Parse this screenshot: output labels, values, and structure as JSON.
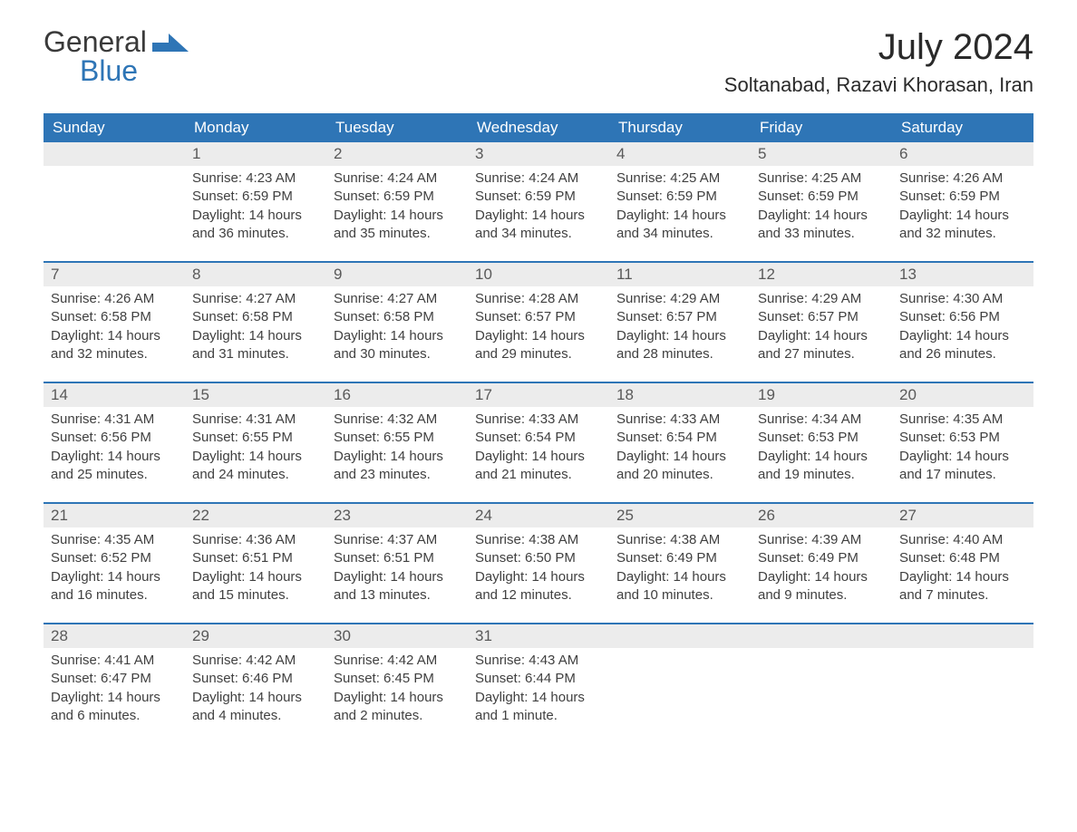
{
  "logo": {
    "word1": "General",
    "word2": "Blue"
  },
  "title": "July 2024",
  "location": "Soltanabad, Razavi Khorasan, Iran",
  "colors": {
    "header_bg": "#2e75b6",
    "header_text": "#ffffff",
    "daynum_bg": "#ececec",
    "daynum_text": "#595959",
    "row_border": "#2e75b6",
    "body_text": "#404040",
    "logo_blue": "#2e75b6"
  },
  "day_headers": [
    "Sunday",
    "Monday",
    "Tuesday",
    "Wednesday",
    "Thursday",
    "Friday",
    "Saturday"
  ],
  "labels": {
    "sunrise": "Sunrise:",
    "sunset": "Sunset:",
    "daylight": "Daylight:"
  },
  "weeks": [
    [
      null,
      {
        "n": "1",
        "sunrise": "4:23 AM",
        "sunset": "6:59 PM",
        "daylight": "14 hours and 36 minutes."
      },
      {
        "n": "2",
        "sunrise": "4:24 AM",
        "sunset": "6:59 PM",
        "daylight": "14 hours and 35 minutes."
      },
      {
        "n": "3",
        "sunrise": "4:24 AM",
        "sunset": "6:59 PM",
        "daylight": "14 hours and 34 minutes."
      },
      {
        "n": "4",
        "sunrise": "4:25 AM",
        "sunset": "6:59 PM",
        "daylight": "14 hours and 34 minutes."
      },
      {
        "n": "5",
        "sunrise": "4:25 AM",
        "sunset": "6:59 PM",
        "daylight": "14 hours and 33 minutes."
      },
      {
        "n": "6",
        "sunrise": "4:26 AM",
        "sunset": "6:59 PM",
        "daylight": "14 hours and 32 minutes."
      }
    ],
    [
      {
        "n": "7",
        "sunrise": "4:26 AM",
        "sunset": "6:58 PM",
        "daylight": "14 hours and 32 minutes."
      },
      {
        "n": "8",
        "sunrise": "4:27 AM",
        "sunset": "6:58 PM",
        "daylight": "14 hours and 31 minutes."
      },
      {
        "n": "9",
        "sunrise": "4:27 AM",
        "sunset": "6:58 PM",
        "daylight": "14 hours and 30 minutes."
      },
      {
        "n": "10",
        "sunrise": "4:28 AM",
        "sunset": "6:57 PM",
        "daylight": "14 hours and 29 minutes."
      },
      {
        "n": "11",
        "sunrise": "4:29 AM",
        "sunset": "6:57 PM",
        "daylight": "14 hours and 28 minutes."
      },
      {
        "n": "12",
        "sunrise": "4:29 AM",
        "sunset": "6:57 PM",
        "daylight": "14 hours and 27 minutes."
      },
      {
        "n": "13",
        "sunrise": "4:30 AM",
        "sunset": "6:56 PM",
        "daylight": "14 hours and 26 minutes."
      }
    ],
    [
      {
        "n": "14",
        "sunrise": "4:31 AM",
        "sunset": "6:56 PM",
        "daylight": "14 hours and 25 minutes."
      },
      {
        "n": "15",
        "sunrise": "4:31 AM",
        "sunset": "6:55 PM",
        "daylight": "14 hours and 24 minutes."
      },
      {
        "n": "16",
        "sunrise": "4:32 AM",
        "sunset": "6:55 PM",
        "daylight": "14 hours and 23 minutes."
      },
      {
        "n": "17",
        "sunrise": "4:33 AM",
        "sunset": "6:54 PM",
        "daylight": "14 hours and 21 minutes."
      },
      {
        "n": "18",
        "sunrise": "4:33 AM",
        "sunset": "6:54 PM",
        "daylight": "14 hours and 20 minutes."
      },
      {
        "n": "19",
        "sunrise": "4:34 AM",
        "sunset": "6:53 PM",
        "daylight": "14 hours and 19 minutes."
      },
      {
        "n": "20",
        "sunrise": "4:35 AM",
        "sunset": "6:53 PM",
        "daylight": "14 hours and 17 minutes."
      }
    ],
    [
      {
        "n": "21",
        "sunrise": "4:35 AM",
        "sunset": "6:52 PM",
        "daylight": "14 hours and 16 minutes."
      },
      {
        "n": "22",
        "sunrise": "4:36 AM",
        "sunset": "6:51 PM",
        "daylight": "14 hours and 15 minutes."
      },
      {
        "n": "23",
        "sunrise": "4:37 AM",
        "sunset": "6:51 PM",
        "daylight": "14 hours and 13 minutes."
      },
      {
        "n": "24",
        "sunrise": "4:38 AM",
        "sunset": "6:50 PM",
        "daylight": "14 hours and 12 minutes."
      },
      {
        "n": "25",
        "sunrise": "4:38 AM",
        "sunset": "6:49 PM",
        "daylight": "14 hours and 10 minutes."
      },
      {
        "n": "26",
        "sunrise": "4:39 AM",
        "sunset": "6:49 PM",
        "daylight": "14 hours and 9 minutes."
      },
      {
        "n": "27",
        "sunrise": "4:40 AM",
        "sunset": "6:48 PM",
        "daylight": "14 hours and 7 minutes."
      }
    ],
    [
      {
        "n": "28",
        "sunrise": "4:41 AM",
        "sunset": "6:47 PM",
        "daylight": "14 hours and 6 minutes."
      },
      {
        "n": "29",
        "sunrise": "4:42 AM",
        "sunset": "6:46 PM",
        "daylight": "14 hours and 4 minutes."
      },
      {
        "n": "30",
        "sunrise": "4:42 AM",
        "sunset": "6:45 PM",
        "daylight": "14 hours and 2 minutes."
      },
      {
        "n": "31",
        "sunrise": "4:43 AM",
        "sunset": "6:44 PM",
        "daylight": "14 hours and 1 minute."
      },
      null,
      null,
      null
    ]
  ]
}
